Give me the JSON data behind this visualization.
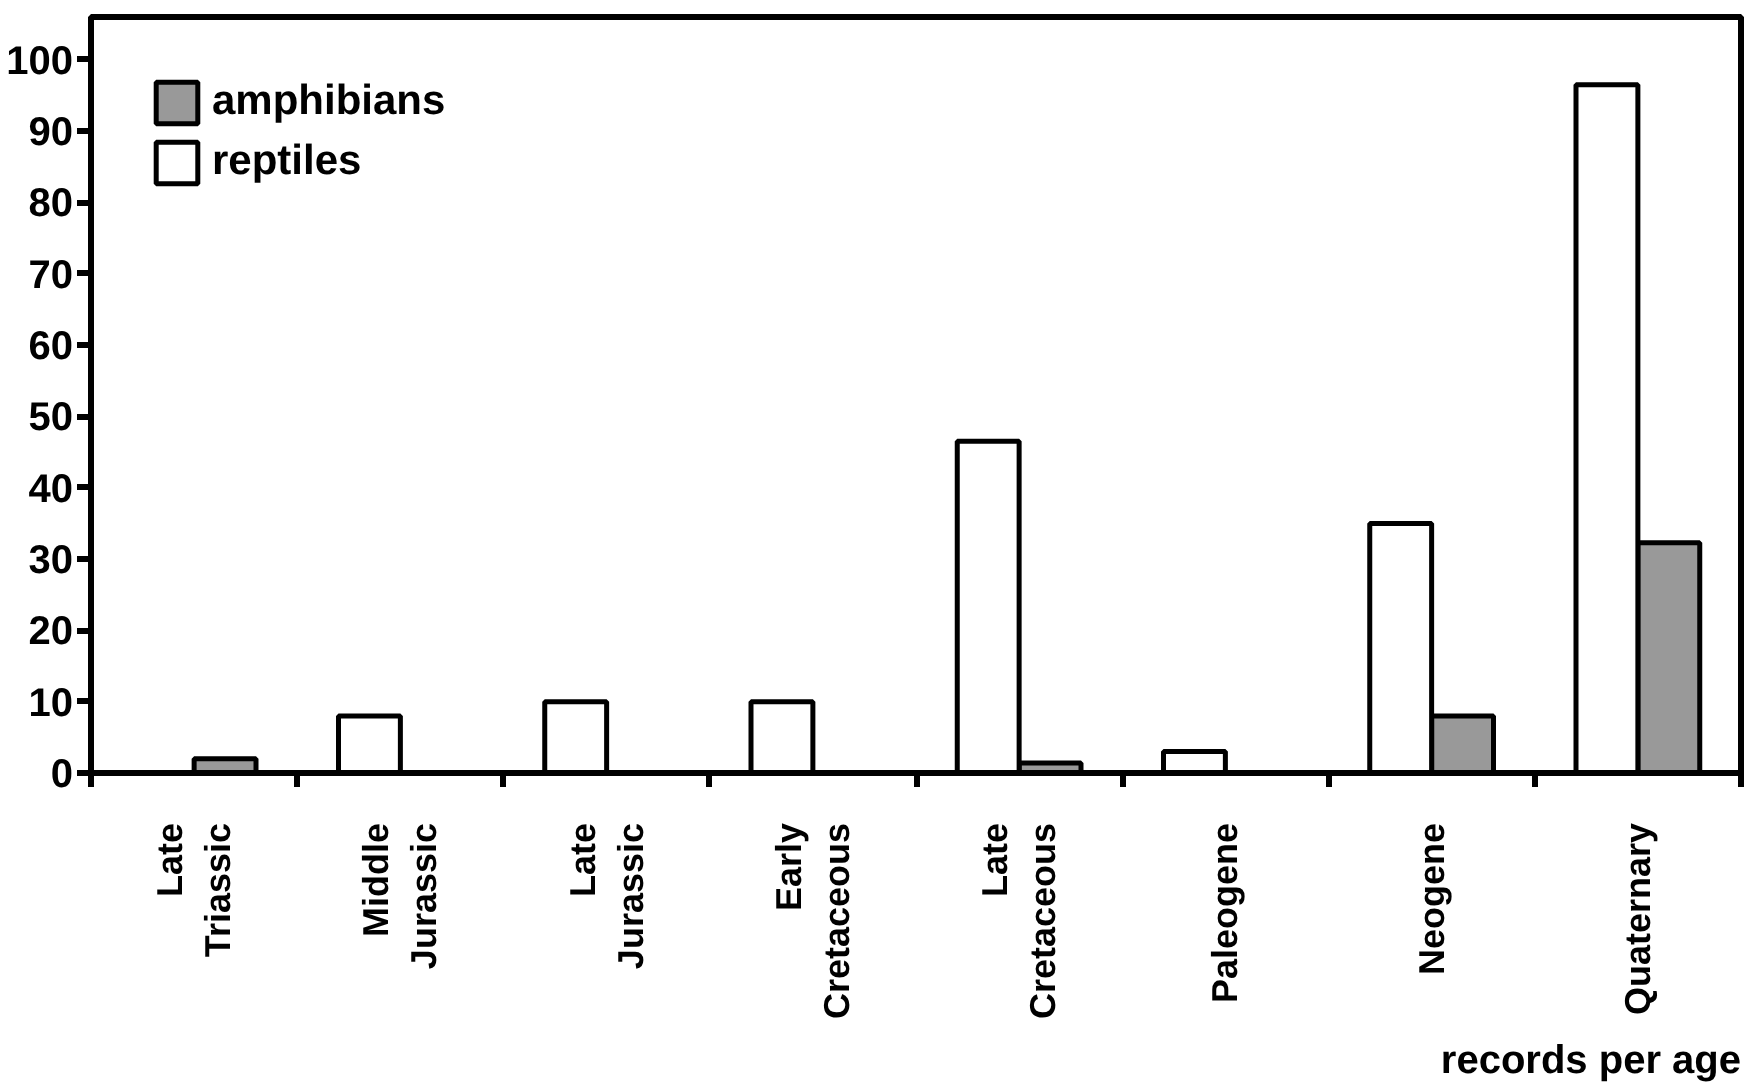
{
  "chart_data": {
    "type": "bar",
    "xlabel": "records per age",
    "categories": [
      "Late Triassic",
      "Middle Jurassic",
      "Late Jurassic",
      "Early Cretaceous",
      "Late Cretaceous",
      "Paleogene",
      "Neogene",
      "Quaternary"
    ],
    "series": [
      {
        "name": "amphibians",
        "color": "#999999",
        "values": [
          2,
          null,
          null,
          null,
          1.4,
          null,
          8,
          32.3
        ]
      },
      {
        "name": "reptiles",
        "color": "#ffffff",
        "values": [
          null,
          8,
          10,
          10,
          46.5,
          3,
          35,
          96.5
        ]
      }
    ],
    "ylim": [
      0,
      106
    ],
    "yticks": [
      0,
      10,
      20,
      30,
      40,
      50,
      60,
      70,
      80,
      90,
      100
    ],
    "grid": false,
    "legend": "top left"
  }
}
